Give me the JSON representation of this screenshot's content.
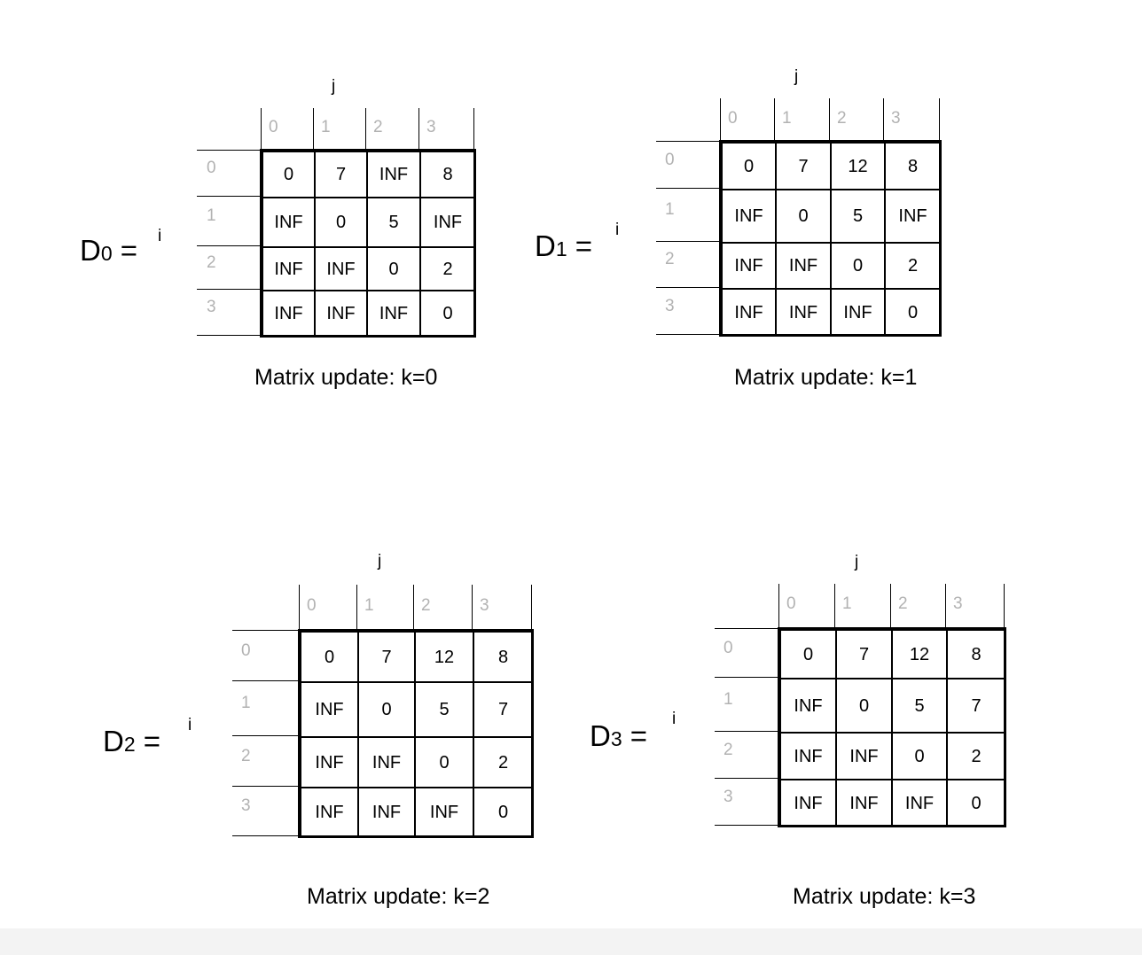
{
  "row_var": "i",
  "col_var": "j",
  "indices": [
    "0",
    "1",
    "2",
    "3"
  ],
  "matrices": [
    {
      "name": "D",
      "sub": "0",
      "eq": "=",
      "caption": "Matrix update: k=0",
      "rows": [
        [
          "0",
          "7",
          "INF",
          "8"
        ],
        [
          "INF",
          "0",
          "5",
          "INF"
        ],
        [
          "INF",
          "INF",
          "0",
          "2"
        ],
        [
          "INF",
          "INF",
          "INF",
          "0"
        ]
      ]
    },
    {
      "name": "D",
      "sub": "1",
      "eq": "=",
      "caption": "Matrix update: k=1",
      "rows": [
        [
          "0",
          "7",
          "12",
          "8"
        ],
        [
          "INF",
          "0",
          "5",
          "INF"
        ],
        [
          "INF",
          "INF",
          "0",
          "2"
        ],
        [
          "INF",
          "INF",
          "INF",
          "0"
        ]
      ]
    },
    {
      "name": "D",
      "sub": "2",
      "eq": "=",
      "caption": "Matrix update: k=2",
      "rows": [
        [
          "0",
          "7",
          "12",
          "8"
        ],
        [
          "INF",
          "0",
          "5",
          "7"
        ],
        [
          "INF",
          "INF",
          "0",
          "2"
        ],
        [
          "INF",
          "INF",
          "INF",
          "0"
        ]
      ]
    },
    {
      "name": "D",
      "sub": "3",
      "eq": "=",
      "caption": "Matrix update: k=3",
      "rows": [
        [
          "0",
          "7",
          "12",
          "8"
        ],
        [
          "INF",
          "0",
          "5",
          "7"
        ],
        [
          "INF",
          "INF",
          "0",
          "2"
        ],
        [
          "INF",
          "INF",
          "INF",
          "0"
        ]
      ]
    }
  ]
}
